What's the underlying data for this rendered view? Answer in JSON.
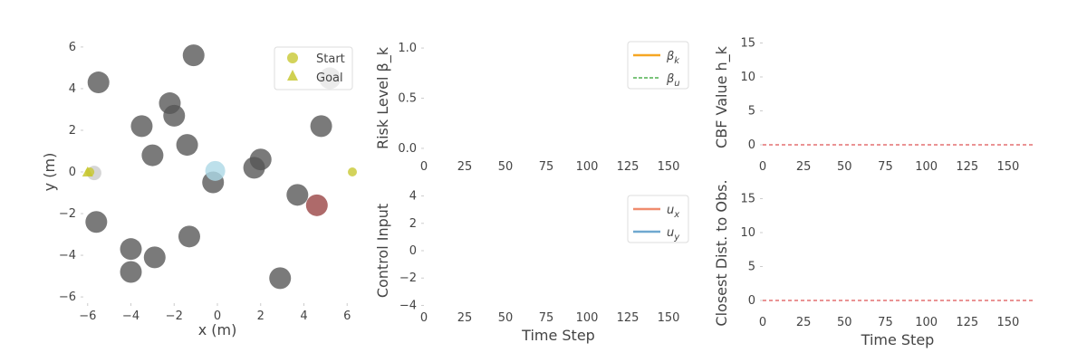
{
  "colors": {
    "obstacle": "#555555",
    "start": "#c8c832",
    "current_robot": "#add8e6",
    "highlight_obstacle": "#a05050",
    "beta_k": "#f5a623",
    "beta_u": "#2ca02c",
    "u_x": "#f08c6e",
    "u_y": "#6fa8d0",
    "zero_line": "#d62728"
  },
  "chart_data": [
    {
      "id": "trajectory",
      "type": "scatter",
      "xlabel": "x (m)",
      "ylabel": "y (m)",
      "xlim": [
        -6.2,
        6.2
      ],
      "ylim": [
        -6.3,
        6.3
      ],
      "xticks": [
        "−6",
        "−4",
        "−2",
        "0",
        "2",
        "4",
        "6"
      ],
      "yticks": [
        "6",
        "4",
        "2",
        "0",
        "−2",
        "−4",
        "−6"
      ],
      "legend": [
        {
          "label": "Start",
          "marker": "circle"
        },
        {
          "label": "Goal",
          "marker": "triangle"
        }
      ],
      "legend_position": "top-right",
      "start": {
        "x": -5.9,
        "y": 0.0
      },
      "goal": {
        "x": -6.0,
        "y": 0.0
      },
      "robot": {
        "x": -0.1,
        "y": 0.05
      },
      "robot_ghost": {
        "x": -5.7,
        "y": -0.05
      },
      "offscreen_marker": {
        "x": 5.8,
        "y": 0.0
      },
      "highlight_obstacle": {
        "x": 4.6,
        "y": -1.6
      },
      "obstacles": [
        {
          "x": -1.1,
          "y": 5.6
        },
        {
          "x": -5.5,
          "y": 4.3
        },
        {
          "x": 5.2,
          "y": 4.5
        },
        {
          "x": -2.2,
          "y": 3.3
        },
        {
          "x": -2.0,
          "y": 2.7
        },
        {
          "x": -3.5,
          "y": 2.2
        },
        {
          "x": 4.8,
          "y": 2.2
        },
        {
          "x": -1.4,
          "y": 1.3
        },
        {
          "x": -3.0,
          "y": 0.8
        },
        {
          "x": 2.0,
          "y": 0.6
        },
        {
          "x": 1.7,
          "y": 0.2
        },
        {
          "x": -0.2,
          "y": -0.5
        },
        {
          "x": 3.7,
          "y": -1.1
        },
        {
          "x": -5.6,
          "y": -2.4
        },
        {
          "x": -1.3,
          "y": -3.1
        },
        {
          "x": -4.0,
          "y": -3.7
        },
        {
          "x": -2.9,
          "y": -4.1
        },
        {
          "x": -4.0,
          "y": -4.8
        },
        {
          "x": 2.9,
          "y": -5.1
        }
      ]
    },
    {
      "id": "risk",
      "type": "line",
      "ylabel": "Risk Level β_k",
      "xlim": [
        0,
        165
      ],
      "ylim": [
        -0.1,
        1.1
      ],
      "xticks": [
        0,
        25,
        50,
        75,
        100,
        125,
        150
      ],
      "yticks": [
        "1.0",
        "0.5",
        "0.0"
      ],
      "legend_position": "top-right",
      "series": [
        {
          "name_base": "β",
          "name_sub": "k",
          "style": "solid",
          "values": []
        },
        {
          "name_base": "β",
          "name_sub": "u",
          "style": "dashed",
          "values": []
        }
      ]
    },
    {
      "id": "cbf",
      "type": "line",
      "ylabel": "CBF Value h_k",
      "xlim": [
        0,
        165
      ],
      "ylim": [
        -2,
        16
      ],
      "xticks": [
        0,
        25,
        50,
        75,
        100,
        125,
        150
      ],
      "yticks": [
        "15",
        "10",
        "5",
        "0"
      ],
      "reference_line": {
        "y": 0,
        "style": "dashed"
      },
      "series": []
    },
    {
      "id": "control",
      "type": "line",
      "xlabel": "Time Step",
      "ylabel": "Control Input",
      "xlim": [
        0,
        165
      ],
      "ylim": [
        -4.3,
        4.3
      ],
      "xticks": [
        0,
        25,
        50,
        75,
        100,
        125,
        150
      ],
      "yticks": [
        "4",
        "2",
        "0",
        "−2",
        "−4"
      ],
      "legend_position": "top-right",
      "series": [
        {
          "name_base": "u",
          "name_sub": "x",
          "style": "solid",
          "values": []
        },
        {
          "name_base": "u",
          "name_sub": "y",
          "style": "solid",
          "values": []
        }
      ]
    },
    {
      "id": "dist",
      "type": "line",
      "xlabel": "Time Step",
      "ylabel": "Closest Dist. to Obs.",
      "xlim": [
        0,
        165
      ],
      "ylim": [
        -2,
        16
      ],
      "xticks": [
        0,
        25,
        50,
        75,
        100,
        125,
        150
      ],
      "yticks": [
        "15",
        "10",
        "5",
        "0"
      ],
      "reference_line": {
        "y": 0,
        "style": "dashed"
      },
      "series": []
    }
  ]
}
